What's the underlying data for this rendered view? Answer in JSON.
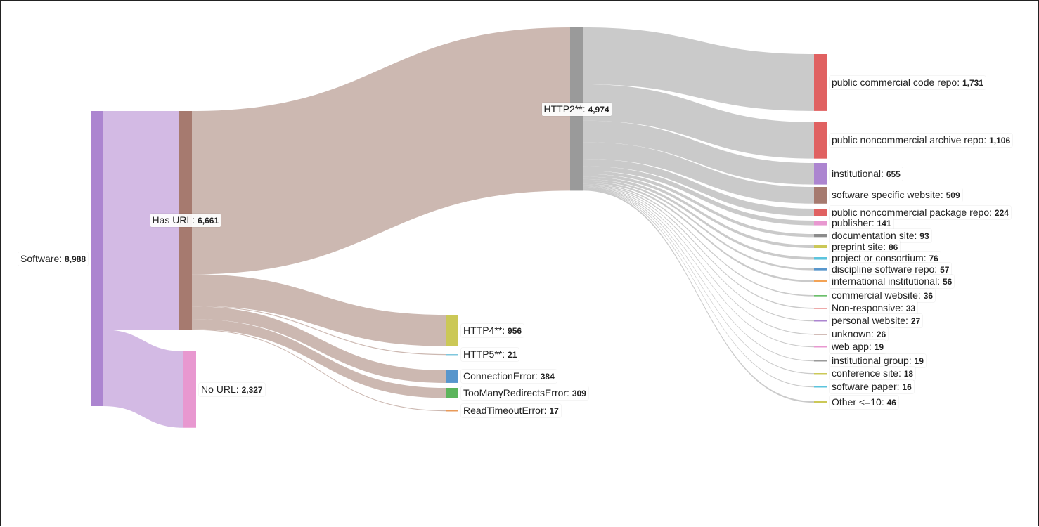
{
  "colors": {
    "link_brown": "#c9b4ad",
    "link_purple": "#d1b6e3",
    "link_gray": "#c7c7c7"
  },
  "nodes": [
    {
      "id": "software",
      "label": "Software",
      "value": "8,988",
      "color": "#ac85d0"
    },
    {
      "id": "has_url",
      "label": "Has URL",
      "value": "6,661",
      "color": "#a67a6f"
    },
    {
      "id": "no_url",
      "label": "No URL",
      "value": "2,327",
      "color": "#e898d0"
    },
    {
      "id": "http2",
      "label": "HTTP2**",
      "value": "4,974",
      "color": "#9a9a9a"
    },
    {
      "id": "http4",
      "label": "HTTP4**",
      "value": "956",
      "color": "#cbc857"
    },
    {
      "id": "http5",
      "label": "HTTP5**",
      "value": "21",
      "color": "#7fc7dd"
    },
    {
      "id": "conn_err",
      "label": "ConnectionError",
      "value": "384",
      "color": "#5896cc"
    },
    {
      "id": "redirect_err",
      "label": "TooManyRedirectsError",
      "value": "309",
      "color": "#5cb55c"
    },
    {
      "id": "timeout_err",
      "label": "ReadTimeoutError",
      "value": "17",
      "color": "#e89a59"
    },
    {
      "id": "pub_code",
      "label": "public commercial code repo",
      "value": "1,731",
      "color": "#e06161"
    },
    {
      "id": "pub_archive",
      "label": "public noncommercial archive repo",
      "value": "1,106",
      "color": "#e06161"
    },
    {
      "id": "institutional",
      "label": "institutional",
      "value": "655",
      "color": "#ac85d0"
    },
    {
      "id": "sw_website",
      "label": "software specific website",
      "value": "509",
      "color": "#a67a6f"
    },
    {
      "id": "pub_package",
      "label": "public noncommercial package repo",
      "value": "224",
      "color": "#e06161"
    },
    {
      "id": "publisher",
      "label": "publisher",
      "value": "141",
      "color": "#e898d0"
    },
    {
      "id": "doc_site",
      "label": "documentation site",
      "value": "93",
      "color": "#8c8c8c"
    },
    {
      "id": "preprint",
      "label": "preprint site",
      "value": "86",
      "color": "#cbc857"
    },
    {
      "id": "project",
      "label": "project or consortium",
      "value": "76",
      "color": "#5cc4dd"
    },
    {
      "id": "discipline",
      "label": "discipline software repo",
      "value": "57",
      "color": "#5896cc"
    },
    {
      "id": "intl_inst",
      "label": "international institutional",
      "value": "56",
      "color": "#f3a356"
    },
    {
      "id": "commercial",
      "label": "commercial website",
      "value": "36",
      "color": "#6cbf6c"
    },
    {
      "id": "nonresp",
      "label": "Non-responsive",
      "value": "33",
      "color": "#e06161"
    },
    {
      "id": "personal",
      "label": "personal website",
      "value": "27",
      "color": "#ac85d0"
    },
    {
      "id": "unknown",
      "label": "unknown",
      "value": "26",
      "color": "#a67a6f"
    },
    {
      "id": "webapp",
      "label": "web app",
      "value": "19",
      "color": "#e898d0"
    },
    {
      "id": "inst_group",
      "label": "institutional group",
      "value": "19",
      "color": "#9a9a9a"
    },
    {
      "id": "conference",
      "label": "conference site",
      "value": "18",
      "color": "#cbc857"
    },
    {
      "id": "sw_paper",
      "label": "software paper",
      "value": "16",
      "color": "#5cc4dd"
    },
    {
      "id": "other",
      "label": "Other <=10",
      "value": "46",
      "color": "#cbc857"
    }
  ],
  "links": [
    {
      "source": "software",
      "target": "has_url",
      "value": 6661
    },
    {
      "source": "software",
      "target": "no_url",
      "value": 2327
    },
    {
      "source": "has_url",
      "target": "http2",
      "value": 4974
    },
    {
      "source": "has_url",
      "target": "http4",
      "value": 956
    },
    {
      "source": "has_url",
      "target": "http5",
      "value": 21
    },
    {
      "source": "has_url",
      "target": "conn_err",
      "value": 384
    },
    {
      "source": "has_url",
      "target": "redirect_err",
      "value": 309
    },
    {
      "source": "has_url",
      "target": "timeout_err",
      "value": 17
    },
    {
      "source": "http2",
      "target": "pub_code",
      "value": 1731
    },
    {
      "source": "http2",
      "target": "pub_archive",
      "value": 1106
    },
    {
      "source": "http2",
      "target": "institutional",
      "value": 655
    },
    {
      "source": "http2",
      "target": "sw_website",
      "value": 509
    },
    {
      "source": "http2",
      "target": "pub_package",
      "value": 224
    },
    {
      "source": "http2",
      "target": "publisher",
      "value": 141
    },
    {
      "source": "http2",
      "target": "doc_site",
      "value": 93
    },
    {
      "source": "http2",
      "target": "preprint",
      "value": 86
    },
    {
      "source": "http2",
      "target": "project",
      "value": 76
    },
    {
      "source": "http2",
      "target": "discipline",
      "value": 57
    },
    {
      "source": "http2",
      "target": "intl_inst",
      "value": 56
    },
    {
      "source": "http2",
      "target": "commercial",
      "value": 36
    },
    {
      "source": "http2",
      "target": "nonresp",
      "value": 33
    },
    {
      "source": "http2",
      "target": "personal",
      "value": 27
    },
    {
      "source": "http2",
      "target": "unknown",
      "value": 26
    },
    {
      "source": "http2",
      "target": "webapp",
      "value": 19
    },
    {
      "source": "http2",
      "target": "inst_group",
      "value": 19
    },
    {
      "source": "http2",
      "target": "conference",
      "value": 18
    },
    {
      "source": "http2",
      "target": "sw_paper",
      "value": 16
    },
    {
      "source": "http2",
      "target": "other",
      "value": 46
    }
  ]
}
